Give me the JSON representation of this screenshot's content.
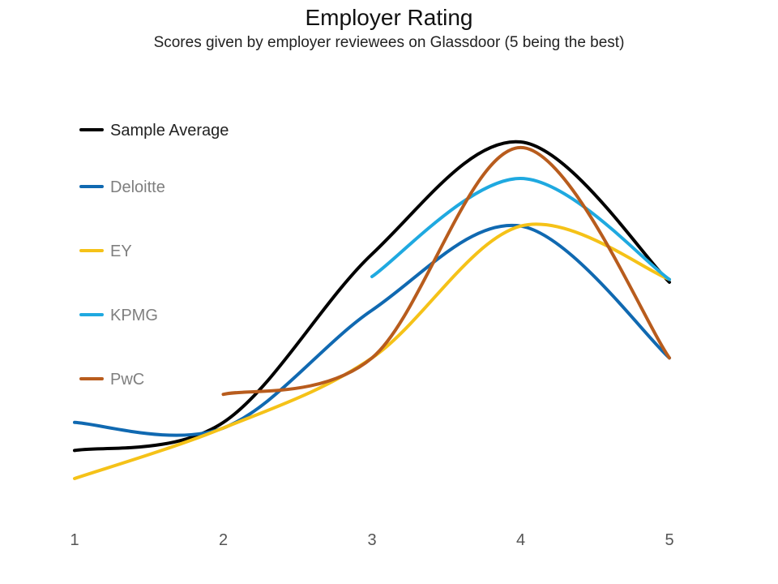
{
  "chart_data": {
    "type": "line",
    "title": "Employer Rating",
    "subtitle": "Scores given by employer reviewees on Glassdoor (5 being the best)",
    "xlabel": "",
    "ylabel": "",
    "x": [
      1,
      2,
      3,
      4,
      5
    ],
    "grid": false,
    "y_axis_visible": false,
    "legend_position": "left",
    "series": [
      {
        "name": "Sample Average",
        "color": "#000000",
        "label_color": "#222222",
        "values": [
          3.0,
          3.1,
          3.7,
          4.1,
          3.6
        ]
      },
      {
        "name": "Deloitte",
        "color": "#1069b1",
        "label_color": "#7f7f7f",
        "values": [
          3.1,
          3.08,
          3.5,
          3.8,
          3.33
        ]
      },
      {
        "name": "EY",
        "color": "#f5c218",
        "label_color": "#7f7f7f",
        "values": [
          2.9,
          3.08,
          3.33,
          3.8,
          3.61
        ]
      },
      {
        "name": "KPMG",
        "color": "#1fa9e0",
        "label_color": "#7f7f7f",
        "values": [
          null,
          null,
          3.62,
          3.97,
          3.61
        ]
      },
      {
        "name": "PwC",
        "color": "#b85c1d",
        "label_color": "#7f7f7f",
        "values": [
          null,
          3.2,
          3.33,
          4.08,
          3.33
        ]
      }
    ]
  }
}
